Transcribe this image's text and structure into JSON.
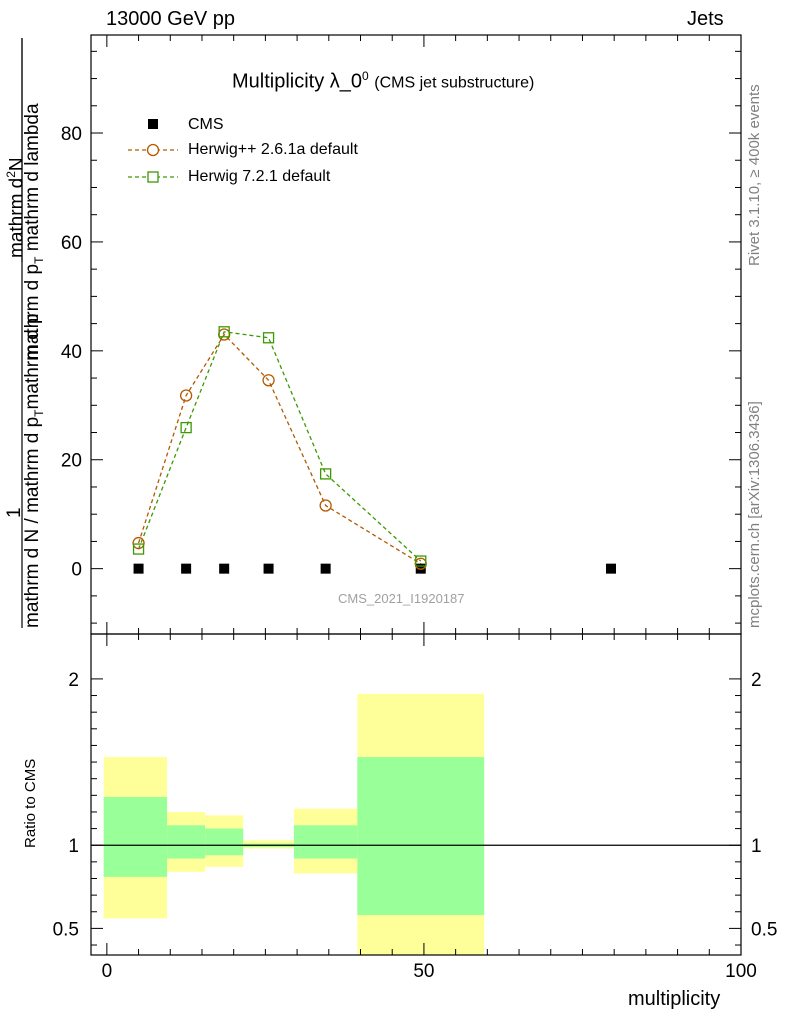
{
  "header": {
    "energy_label": "13000 GeV pp",
    "process_label": "Jets"
  },
  "side_labels": {
    "rivet": "Rivet 3.1.10, ≥ 400k events",
    "mcplots": "mcplots.cern.ch [arXiv:1306.3436]"
  },
  "colors": {
    "cms": "#000000",
    "herwigpp": "#b35900",
    "herwig7": "#3d9900",
    "band_inner": "#99ff99",
    "band_outer": "#ffff99",
    "side_text": "#808080"
  },
  "chart_data": [
    {
      "type": "scatter",
      "panel": "main",
      "title": "Multiplicity λ_0",
      "title_sup": "0",
      "subtitle": "(CMS jet substructure)",
      "ylabel_numerator": "1",
      "ylabel_denominator": "mathrm d N / mathrm d p",
      "ylabel_denominator_sub": "T",
      "ylabel_denominator_rest": "mathrm d p",
      "ylabel_fraction_num": "mathrm d",
      "ylabel_fraction_sup": "2",
      "ylabel_fraction_N": "N",
      "ylabel_fraction_den": "mathrm d p",
      "ylabel_fraction_den_sub": "T",
      "ylabel_fraction_den_rest": "mathrm d lambda",
      "xlim": [
        -2.5,
        100
      ],
      "ylim": [
        -12,
        98
      ],
      "yticks": [
        0,
        20,
        40,
        60,
        80
      ],
      "watermark": "CMS_2021_I1920187",
      "series": [
        {
          "name": "CMS",
          "marker": "filled-square",
          "x": [
            5,
            12.5,
            18.5,
            25.5,
            34.5,
            49.5,
            79.5
          ],
          "y": [
            0,
            0,
            0,
            0,
            0,
            0,
            0
          ]
        },
        {
          "name": "Herwig++ 2.6.1a default",
          "marker": "open-circle",
          "x": [
            5,
            12.5,
            18.5,
            25.5,
            34.5,
            49.5
          ],
          "y": [
            4.7,
            31.8,
            43.0,
            34.6,
            11.6,
            0.9
          ]
        },
        {
          "name": "Herwig 7.2.1 default",
          "marker": "open-square",
          "x": [
            5,
            12.5,
            18.5,
            25.5,
            34.5,
            49.5
          ],
          "y": [
            3.6,
            25.9,
            43.5,
            42.4,
            17.4,
            1.4
          ]
        }
      ]
    },
    {
      "type": "area",
      "panel": "ratio",
      "ylabel": "Ratio to CMS",
      "xlabel": "multiplicity",
      "xlim": [
        -2.5,
        100
      ],
      "ylim": [
        0.34,
        2.27
      ],
      "yticks": [
        0.5,
        1,
        2
      ],
      "ytick_labels": [
        "0.5",
        "1",
        "2"
      ],
      "xticks": [
        0,
        50,
        100
      ],
      "xtick_labels": [
        "0",
        "50",
        "100"
      ],
      "reference_line": 1,
      "bins": [
        {
          "x_low": -0.5,
          "x_high": 9.5,
          "inner_low": 0.81,
          "inner_high": 1.29,
          "outer_low": 0.56,
          "outer_high": 1.53
        },
        {
          "x_low": 9.5,
          "x_high": 15.5,
          "inner_low": 0.92,
          "inner_high": 1.12,
          "outer_low": 0.84,
          "outer_high": 1.2
        },
        {
          "x_low": 15.5,
          "x_high": 21.5,
          "inner_low": 0.94,
          "inner_high": 1.1,
          "outer_low": 0.87,
          "outer_high": 1.18
        },
        {
          "x_low": 21.5,
          "x_high": 29.5,
          "inner_low": 0.99,
          "inner_high": 1.01,
          "outer_low": 0.98,
          "outer_high": 1.03
        },
        {
          "x_low": 29.5,
          "x_high": 39.5,
          "inner_low": 0.92,
          "inner_high": 1.12,
          "outer_low": 0.83,
          "outer_high": 1.22
        },
        {
          "x_low": 39.5,
          "x_high": 59.5,
          "inner_low": 0.58,
          "inner_high": 1.53,
          "outer_low": 0.34,
          "outer_high": 1.91
        }
      ]
    }
  ]
}
